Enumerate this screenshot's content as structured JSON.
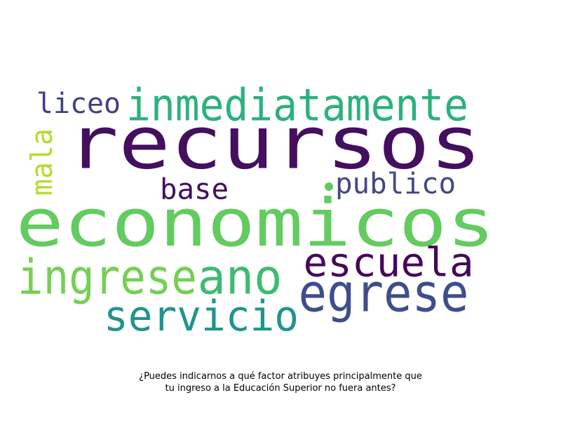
{
  "words": [
    {
      "text": "recursos",
      "color": "#440f5f"
    },
    {
      "text": "economicos",
      "color": "#63cb5f"
    },
    {
      "text": "inmediatamente",
      "color": "#2cb17e"
    },
    {
      "text": "liceo",
      "color": "#413e84"
    },
    {
      "text": "mala",
      "color": "#b3dc2b"
    },
    {
      "text": "base",
      "color": "#440f5f"
    },
    {
      "text": "publico",
      "color": "#424886"
    },
    {
      "text": "escuela",
      "color": "#46085b"
    },
    {
      "text": "egrese",
      "color": "#3f4e8a"
    },
    {
      "text": "ingrese",
      "color": "#75d054"
    },
    {
      "text": "ano",
      "color": "#3ebb72"
    },
    {
      "text": "servicio",
      "color": "#1f958b"
    }
  ],
  "dot_color": "#5ec962",
  "caption": {
    "line1": "¿Puedes indicarnos a qué factor atribuyes principalmente que",
    "line2": "tu ingreso a la Educación Superior no fuera antes?"
  }
}
